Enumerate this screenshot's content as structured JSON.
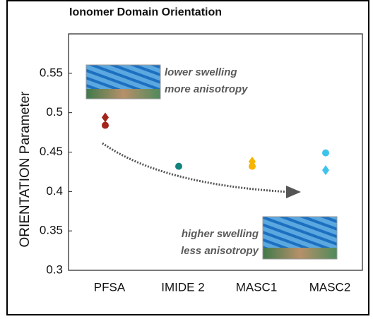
{
  "chart_data": {
    "type": "scatter",
    "title": "Ionomer Domain Orientation",
    "y_label": "ORIENTATION Parameter",
    "categories": [
      "PFSA",
      "IMIDE 2",
      "MASC1",
      "MASC2"
    ],
    "colors": [
      "#a3261a",
      "#14837e",
      "#f7b500",
      "#3ec3ea"
    ],
    "series": [
      {
        "marker": "circle",
        "values": [
          0.484,
          0.432,
          0.432,
          0.449
        ]
      },
      {
        "marker": "diamond",
        "values": [
          0.494,
          null,
          0.438,
          0.427
        ]
      }
    ],
    "ylim": [
      0.3,
      0.6
    ],
    "yticks": [
      0.3,
      0.35,
      0.4,
      0.45,
      0.5,
      0.55
    ],
    "annotations": [
      {
        "lines": [
          "lower swelling",
          "more anisotropy"
        ]
      },
      {
        "lines": [
          "higher swelling",
          "less anisotropy"
        ]
      }
    ]
  }
}
